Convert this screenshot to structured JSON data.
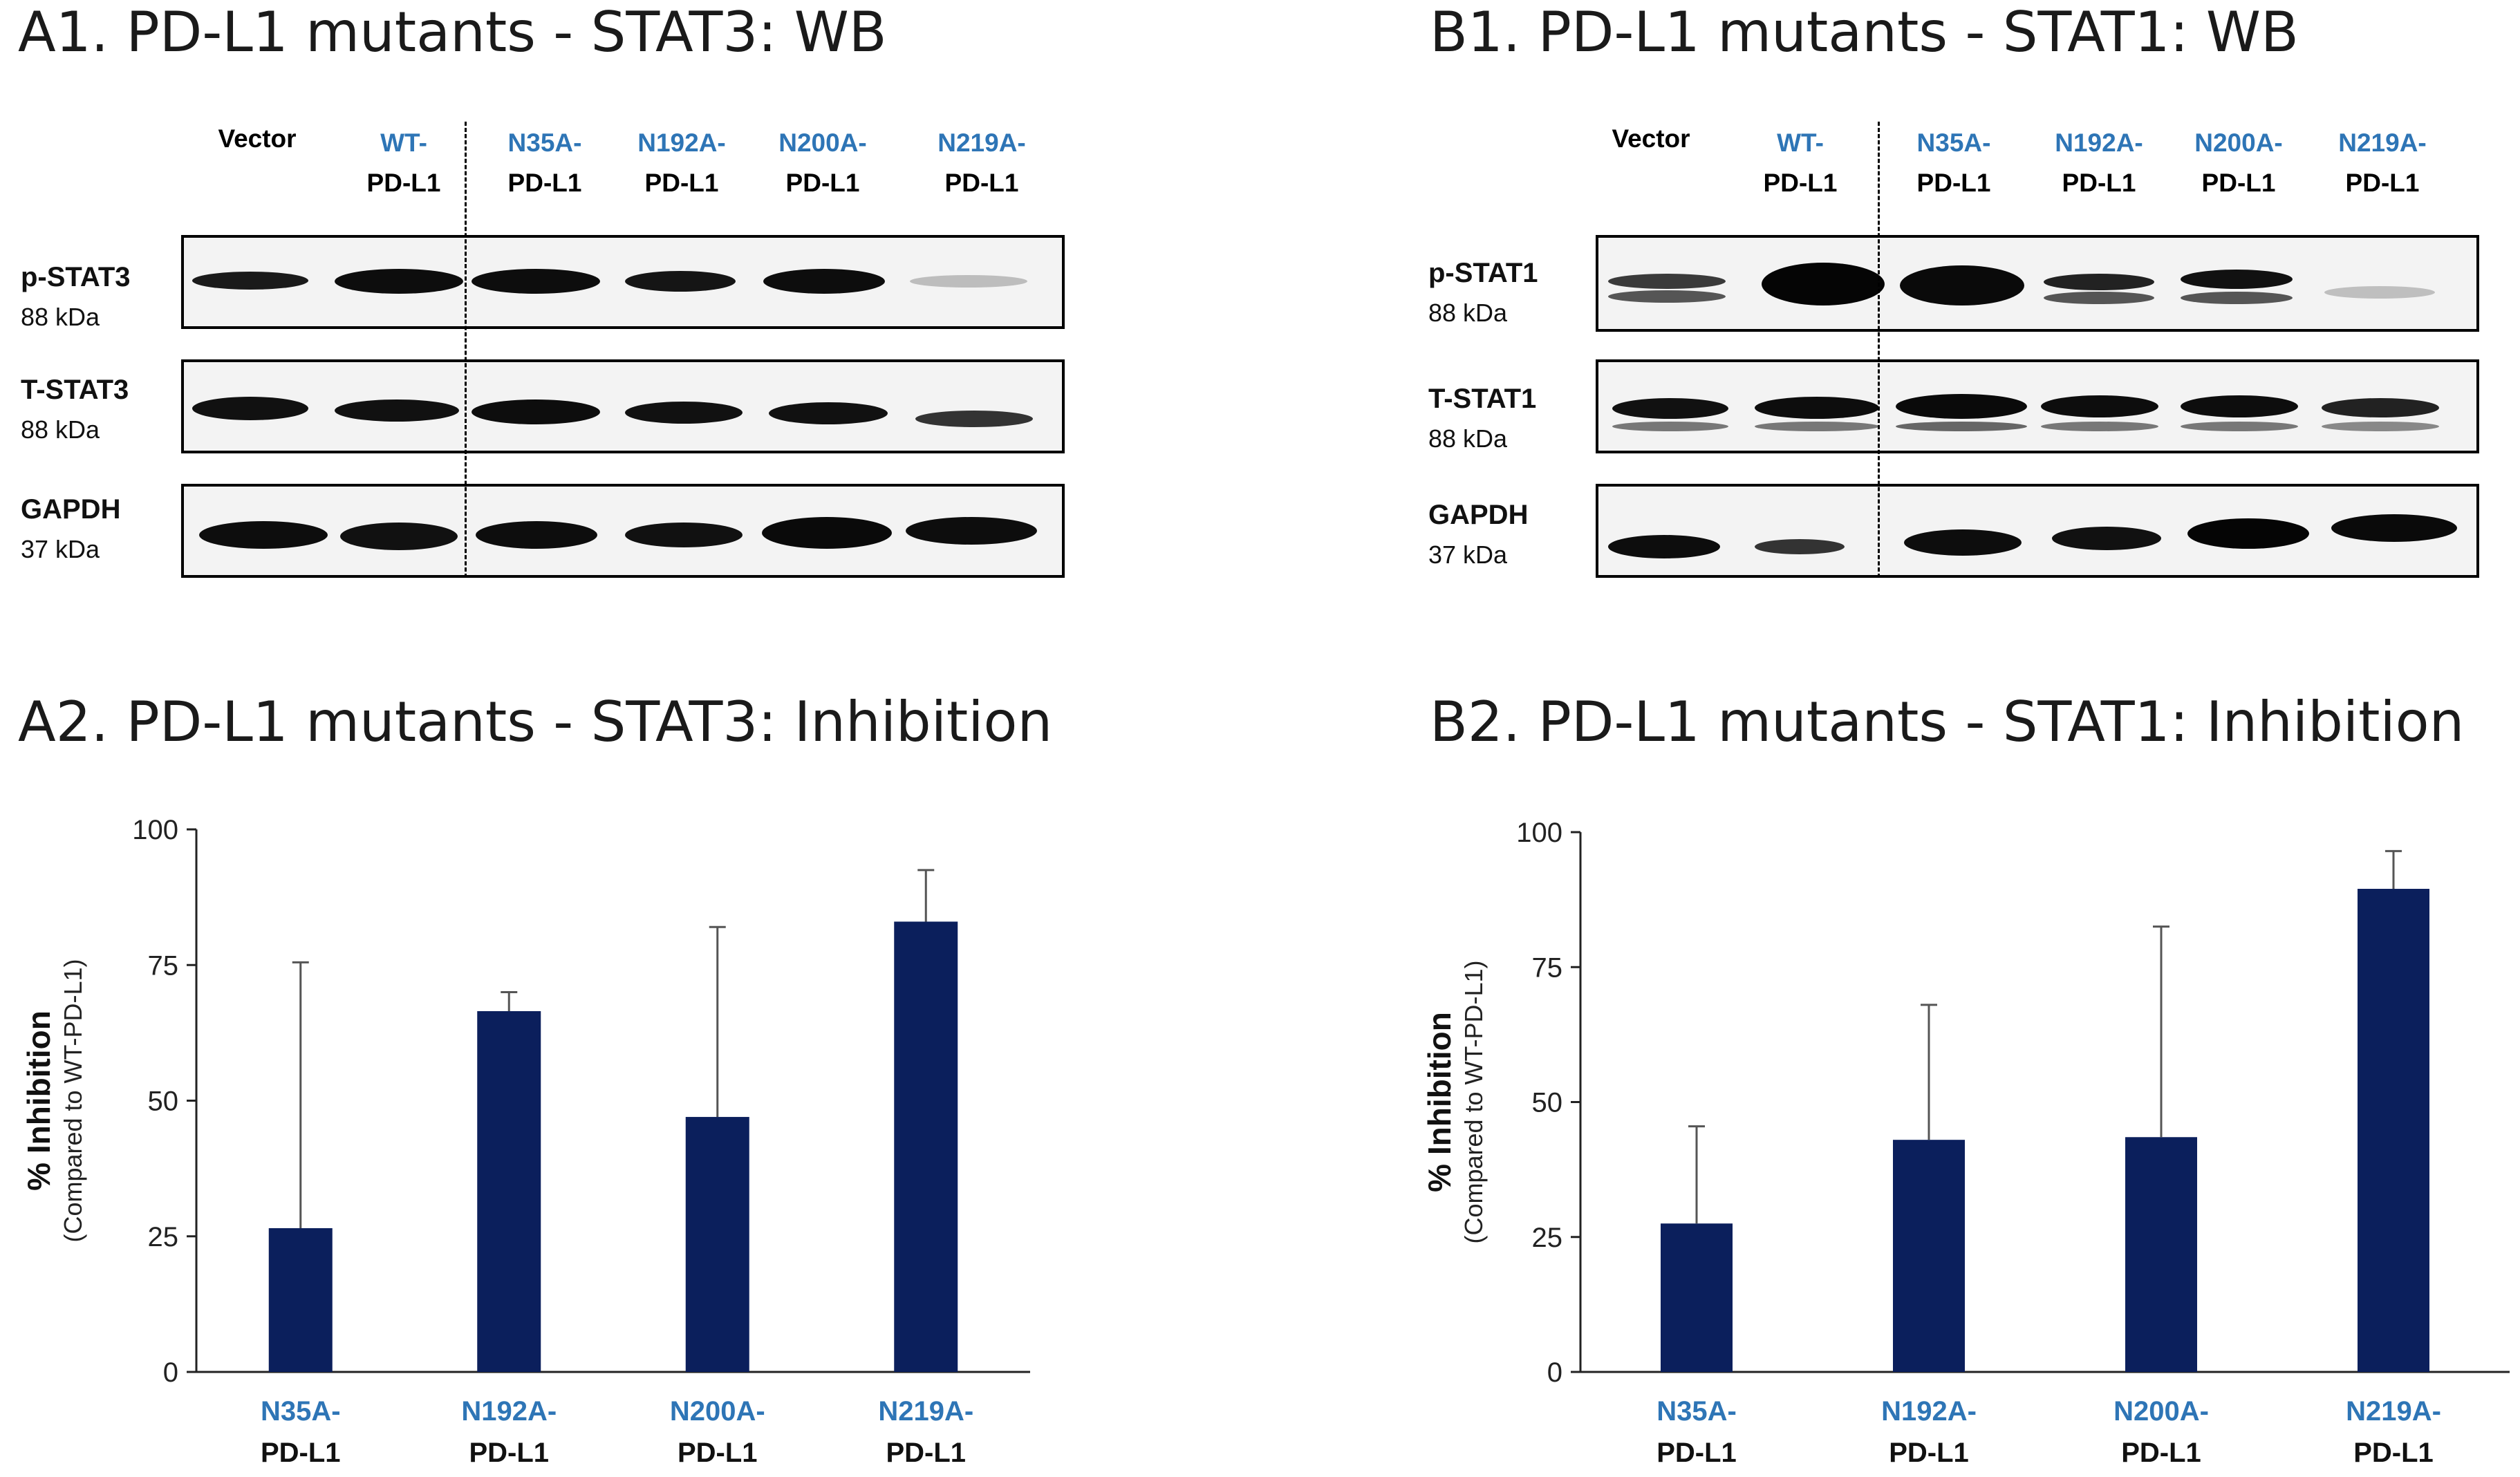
{
  "panels": {
    "a1": {
      "title": "A1. PD-L1 mutants - STAT3: WB",
      "lanes": [
        {
          "l1": "Vector",
          "l2": ""
        },
        {
          "l1": "WT-",
          "l2": "PD-L1"
        },
        {
          "l1": "N35A-",
          "l2": "PD-L1"
        },
        {
          "l1": "N192A-",
          "l2": "PD-L1"
        },
        {
          "l1": "N200A-",
          "l2": "PD-L1"
        },
        {
          "l1": "N219A-",
          "l2": "PD-L1"
        }
      ],
      "blots": [
        {
          "name": "p-STAT3",
          "kda": "88 kDa"
        },
        {
          "name": "T-STAT3",
          "kda": "88 kDa"
        },
        {
          "name": "GAPDH",
          "kda": "37 kDa"
        }
      ]
    },
    "b1": {
      "title": "B1. PD-L1 mutants - STAT1: WB",
      "lanes": [
        {
          "l1": "Vector",
          "l2": ""
        },
        {
          "l1": "WT-",
          "l2": "PD-L1"
        },
        {
          "l1": "N35A-",
          "l2": "PD-L1"
        },
        {
          "l1": "N192A-",
          "l2": "PD-L1"
        },
        {
          "l1": "N200A-",
          "l2": "PD-L1"
        },
        {
          "l1": "N219A-",
          "l2": "PD-L1"
        }
      ],
      "blots": [
        {
          "name": "p-STAT1",
          "kda": "88 kDa"
        },
        {
          "name": "T-STAT1",
          "kda": "88 kDa"
        },
        {
          "name": "GAPDH",
          "kda": "37 kDa"
        }
      ]
    },
    "a2": {
      "title": "A2. PD-L1 mutants - STAT3: Inhibition"
    },
    "b2": {
      "title": "B2. PD-L1 mutants - STAT1: Inhibition"
    }
  },
  "colors": {
    "bar": "#0b1f5c",
    "mutant_label": "#2e75b6",
    "axis": "#222222",
    "error_bar": "#555555"
  },
  "chart_data": [
    {
      "type": "bar",
      "panel": "A2",
      "title": "",
      "categories": [
        {
          "l1": "N35A-",
          "l2": "PD-L1"
        },
        {
          "l1": "N192A-",
          "l2": "PD-L1"
        },
        {
          "l1": "N200A-",
          "l2": "PD-L1"
        },
        {
          "l1": "N219A-",
          "l2": "PD-L1"
        }
      ],
      "values": [
        26.5,
        66.5,
        47,
        83
      ],
      "error": [
        49,
        3.5,
        35,
        9.5
      ],
      "ylabel": "% Inhibition",
      "ylabel_sub": "(Compared to WT-PD-L1)",
      "ylim": [
        0,
        100
      ],
      "yticks": [
        "0",
        "25",
        "50",
        "75",
        "100"
      ]
    },
    {
      "type": "bar",
      "panel": "B2",
      "title": "",
      "categories": [
        {
          "l1": "N35A-",
          "l2": "PD-L1"
        },
        {
          "l1": "N192A-",
          "l2": "PD-L1"
        },
        {
          "l1": "N200A-",
          "l2": "PD-L1"
        },
        {
          "l1": "N219A-",
          "l2": "PD-L1"
        }
      ],
      "values": [
        27.5,
        43,
        43.5,
        89.5
      ],
      "error": [
        18,
        25,
        39,
        7
      ],
      "ylabel": "% Inhibition",
      "ylabel_sub": "(Compared to WT-PD-L1)",
      "ylim": [
        0,
        100
      ],
      "yticks": [
        "0",
        "25",
        "50",
        "75",
        "100"
      ]
    }
  ]
}
